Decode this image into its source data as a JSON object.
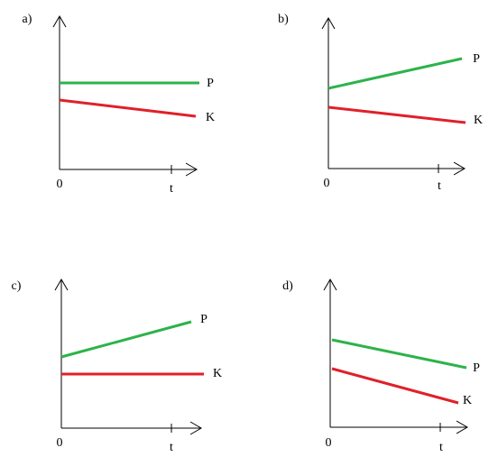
{
  "panels": [
    {
      "label": "a)",
      "origin": "0",
      "time": "t",
      "lines": [
        {
          "label": "P"
        },
        {
          "label": "K"
        }
      ]
    },
    {
      "label": "b)",
      "origin": "0",
      "time": "t",
      "lines": [
        {
          "label": "P"
        },
        {
          "label": "K"
        }
      ]
    },
    {
      "label": "c)",
      "origin": "0",
      "time": "t",
      "lines": [
        {
          "label": "P"
        },
        {
          "label": "K"
        }
      ]
    },
    {
      "label": "d)",
      "origin": "0",
      "time": "t",
      "lines": [
        {
          "label": "P"
        },
        {
          "label": "K"
        }
      ]
    }
  ]
}
